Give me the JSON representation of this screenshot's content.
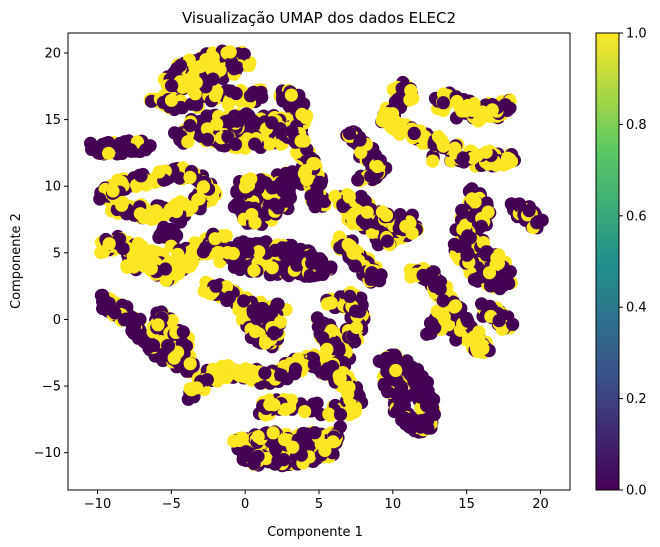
{
  "chart_data": {
    "type": "scatter",
    "title": "Visualização UMAP dos dados ELEC2",
    "xlabel": "Componente 1",
    "ylabel": "Componente 2",
    "xlim": [
      -12,
      22
    ],
    "ylim": [
      -12.8,
      21.5
    ],
    "x_ticks": [
      -10,
      -5,
      0,
      5,
      10,
      15,
      20
    ],
    "y_ticks": [
      -10,
      -5,
      0,
      5,
      10,
      15,
      20
    ],
    "grid": false,
    "colorbar": {
      "colormap": "viridis",
      "range": [
        0,
        1
      ],
      "ticks": [
        "0.0",
        "0.2",
        "0.4",
        "0.6",
        "0.8",
        "1.0"
      ],
      "colors": [
        "#440154",
        "#3b528b",
        "#21918c",
        "#5ec962",
        "#fde725"
      ]
    },
    "point_colors": {
      "class_0": "#440154",
      "class_1": "#fde725"
    },
    "clusters": [
      {
        "points": [
          [
            -4.8,
            18.6
          ],
          [
            -3.5,
            19.2
          ],
          [
            -2.0,
            19.6
          ],
          [
            -0.8,
            19.8
          ],
          [
            0.1,
            19.4
          ],
          [
            -1.8,
            18.5
          ],
          [
            -3.5,
            17.9
          ],
          [
            -5.2,
            17.8
          ],
          [
            -3.2,
            17.2
          ],
          [
            -1.0,
            16.8
          ],
          [
            1.0,
            16.8
          ],
          [
            -4.0,
            16.2
          ],
          [
            -6.0,
            16.4
          ],
          [
            -4.5,
            15.9
          ]
        ],
        "class1": 0.5
      },
      {
        "points": [
          [
            -10.2,
            12.9
          ],
          [
            -8.8,
            12.8
          ],
          [
            -7.5,
            13.0
          ],
          [
            -6.8,
            13.1
          ]
        ],
        "class1": 0.15
      },
      {
        "points": [
          [
            -4.5,
            13.6
          ],
          [
            -3.2,
            14.6
          ],
          [
            -1.5,
            15.1
          ],
          [
            0.0,
            15.0
          ],
          [
            1.8,
            14.9
          ],
          [
            3.2,
            14.3
          ],
          [
            2.2,
            13.5
          ],
          [
            0.2,
            13.2
          ],
          [
            -1.8,
            13.4
          ],
          [
            -2.8,
            13.9
          ],
          [
            -1.2,
            14.0
          ],
          [
            1.0,
            14.0
          ]
        ],
        "class1": 0.3
      },
      {
        "points": [
          [
            -9.6,
            8.9
          ],
          [
            -8.8,
            9.8
          ],
          [
            -7.8,
            10.3
          ],
          [
            -6.5,
            10.6
          ],
          [
            -5.0,
            10.9
          ],
          [
            -3.8,
            11.0
          ],
          [
            -2.7,
            10.3
          ],
          [
            -2.3,
            9.4
          ],
          [
            -3.5,
            8.7
          ],
          [
            -5.0,
            8.3
          ],
          [
            -6.5,
            8.0
          ],
          [
            -7.8,
            8.3
          ],
          [
            -8.7,
            8.5
          ],
          [
            -4.5,
            7.6
          ]
        ],
        "class1": 0.5
      },
      {
        "points": [
          [
            -5.5,
            6.5
          ],
          [
            -5.0,
            6.3
          ]
        ],
        "class1": 0.0
      },
      {
        "points": [
          [
            -9.5,
            5.4
          ],
          [
            -8.5,
            5.8
          ],
          [
            -7.4,
            5.3
          ],
          [
            -6.4,
            4.6
          ],
          [
            -5.5,
            4.0
          ],
          [
            -4.4,
            3.7
          ],
          [
            -3.7,
            4.7
          ],
          [
            -2.6,
            5.3
          ],
          [
            -1.6,
            6.1
          ],
          [
            -8.0,
            4.4
          ],
          [
            -6.8,
            3.7
          ],
          [
            -5.2,
            3.2
          ]
        ],
        "class1": 0.7
      },
      {
        "points": [
          [
            -0.5,
            9.9
          ],
          [
            0.8,
            10.2
          ],
          [
            2.3,
            10.0
          ],
          [
            2.8,
            9.0
          ],
          [
            2.0,
            8.0
          ],
          [
            0.4,
            7.5
          ],
          [
            -0.3,
            8.5
          ],
          [
            1.2,
            9.0
          ],
          [
            2.8,
            10.7
          ],
          [
            3.5,
            10.6
          ]
        ],
        "class1": 0.25
      },
      {
        "points": [
          [
            -1.4,
            4.7
          ],
          [
            -0.2,
            5.4
          ],
          [
            1.2,
            5.4
          ],
          [
            2.6,
            5.2
          ],
          [
            3.8,
            4.8
          ],
          [
            4.8,
            4.3
          ],
          [
            5.5,
            3.8
          ],
          [
            4.0,
            3.6
          ],
          [
            1.8,
            3.8
          ],
          [
            -0.5,
            4.2
          ]
        ],
        "class1": 0.3
      },
      {
        "points": [
          [
            2.5,
            16.8
          ],
          [
            3.4,
            16.3
          ],
          [
            3.8,
            15.2
          ],
          [
            3.5,
            13.8
          ],
          [
            4.0,
            12.5
          ],
          [
            4.4,
            11.3
          ],
          [
            4.8,
            10.2
          ],
          [
            4.9,
            9.5
          ],
          [
            5.0,
            8.8
          ]
        ],
        "class1": 0.4
      },
      {
        "points": [
          [
            7.0,
            14.2
          ],
          [
            7.8,
            13.2
          ],
          [
            8.5,
            12.0
          ],
          [
            9.2,
            11.0
          ],
          [
            8.0,
            10.8
          ]
        ],
        "class1": 0.35
      },
      {
        "points": [
          [
            10.4,
            17.5
          ],
          [
            11.2,
            16.8
          ],
          [
            10.0,
            16.2
          ],
          [
            9.5,
            15.2
          ],
          [
            10.5,
            14.5
          ],
          [
            11.5,
            14.0
          ],
          [
            12.8,
            13.3
          ],
          [
            14.0,
            12.7
          ],
          [
            15.5,
            12.0
          ],
          [
            16.8,
            11.8
          ],
          [
            18.2,
            12.2
          ],
          [
            13.0,
            12.2
          ]
        ],
        "class1": 0.55
      },
      {
        "points": [
          [
            13.0,
            16.0
          ],
          [
            14.0,
            16.6
          ],
          [
            15.2,
            15.8
          ],
          [
            16.2,
            15.0
          ],
          [
            17.2,
            15.6
          ],
          [
            17.8,
            16.2
          ],
          [
            14.5,
            15.4
          ]
        ],
        "class1": 0.6
      },
      {
        "points": [
          [
            6.5,
            9.0
          ],
          [
            7.5,
            8.8
          ],
          [
            8.5,
            8.2
          ],
          [
            9.5,
            7.4
          ],
          [
            10.5,
            6.8
          ],
          [
            11.4,
            6.9
          ],
          [
            10.2,
            6.2
          ],
          [
            9.2,
            6.0
          ],
          [
            8.0,
            7.5
          ],
          [
            7.2,
            7.9
          ],
          [
            11.0,
            7.4
          ]
        ],
        "class1": 0.5
      },
      {
        "points": [
          [
            15.5,
            9.4
          ],
          [
            16.2,
            8.4
          ],
          [
            15.8,
            7.0
          ],
          [
            15.0,
            6.0
          ],
          [
            16.4,
            5.0
          ],
          [
            17.2,
            4.0
          ],
          [
            17.6,
            3.2
          ],
          [
            16.8,
            2.6
          ],
          [
            15.8,
            3.4
          ],
          [
            15.0,
            4.6
          ],
          [
            14.5,
            5.6
          ],
          [
            15.2,
            8.4
          ]
        ],
        "class1": 0.35
      },
      {
        "points": [
          [
            18.4,
            8.4
          ],
          [
            19.2,
            7.9
          ],
          [
            19.8,
            7.0
          ]
        ],
        "class1": 0.1
      },
      {
        "points": [
          [
            6.5,
            5.8
          ],
          [
            7.4,
            5.1
          ],
          [
            7.8,
            4.3
          ],
          [
            8.3,
            3.6
          ],
          [
            8.9,
            3.1
          ],
          [
            7.0,
            5.6
          ]
        ],
        "class1": 0.5
      },
      {
        "points": [
          [
            11.5,
            3.5
          ],
          [
            12.6,
            3.4
          ],
          [
            13.0,
            2.6
          ],
          [
            13.6,
            1.7
          ],
          [
            14.3,
            0.6
          ],
          [
            15.0,
            -0.5
          ],
          [
            15.8,
            -1.7
          ],
          [
            16.2,
            -2.5
          ],
          [
            13.2,
            0.2
          ],
          [
            12.5,
            -1.0
          ]
        ],
        "class1": 0.55
      },
      {
        "points": [
          [
            16.2,
            0.8
          ],
          [
            17.2,
            0.3
          ],
          [
            17.8,
            -0.5
          ]
        ],
        "class1": 0.2
      },
      {
        "points": [
          [
            -9.5,
            1.4
          ],
          [
            -8.6,
            0.6
          ],
          [
            -7.8,
            0.0
          ],
          [
            -7.0,
            -1.2
          ],
          [
            -6.2,
            -2.0
          ],
          [
            -5.4,
            -2.5
          ],
          [
            -4.6,
            -3.2
          ],
          [
            -3.8,
            -3.6
          ],
          [
            -4.2,
            -1.5
          ],
          [
            -5.3,
            -0.5
          ],
          [
            -6.2,
            0.4
          ],
          [
            -5.0,
            -2.8
          ]
        ],
        "class1": 0.3
      },
      {
        "points": [
          [
            -2.5,
            2.4
          ],
          [
            -1.5,
            2.1
          ],
          [
            -0.5,
            1.5
          ],
          [
            0.5,
            1.0
          ],
          [
            1.5,
            0.4
          ],
          [
            2.2,
            -0.8
          ],
          [
            1.6,
            -1.8
          ],
          [
            0.8,
            -0.9
          ],
          [
            0.0,
            0.4
          ],
          [
            2.4,
            0.8
          ]
        ],
        "class1": 0.5
      },
      {
        "points": [
          [
            5.8,
            1.1
          ],
          [
            6.8,
            1.6
          ],
          [
            7.5,
            1.1
          ],
          [
            7.6,
            0.0
          ],
          [
            7.3,
            -1.0
          ],
          [
            6.5,
            -1.8
          ],
          [
            6.0,
            -2.8
          ],
          [
            5.6,
            -1.5
          ],
          [
            5.2,
            -0.3
          ],
          [
            6.7,
            -3.3
          ]
        ],
        "class1": 0.45
      },
      {
        "points": [
          [
            9.5,
            -2.8
          ],
          [
            10.5,
            -3.2
          ],
          [
            11.4,
            -4.0
          ],
          [
            12.0,
            -5.2
          ],
          [
            12.4,
            -6.4
          ],
          [
            12.3,
            -7.7
          ],
          [
            11.7,
            -8.2
          ],
          [
            10.9,
            -7.4
          ],
          [
            10.3,
            -6.0
          ],
          [
            9.8,
            -4.9
          ],
          [
            9.8,
            -3.6
          ],
          [
            12.7,
            -7.2
          ]
        ],
        "class1": 0.15
      },
      {
        "points": [
          [
            -3.5,
            -5.6
          ],
          [
            -2.6,
            -4.5
          ],
          [
            -1.8,
            -3.8
          ],
          [
            -0.5,
            -4.0
          ],
          [
            0.5,
            -4.2
          ],
          [
            1.5,
            -4.4
          ],
          [
            2.5,
            -4.0
          ],
          [
            3.5,
            -3.5
          ],
          [
            4.5,
            -3.0
          ],
          [
            5.5,
            -3.6
          ],
          [
            6.5,
            -4.4
          ],
          [
            7.2,
            -5.2
          ],
          [
            7.5,
            -6.2
          ],
          [
            6.8,
            -6.9
          ],
          [
            3.0,
            -6.5
          ],
          [
            1.8,
            -6.2
          ],
          [
            1.3,
            -6.9
          ]
        ],
        "class1": 0.5
      },
      {
        "points": [
          [
            -0.5,
            -9.5
          ],
          [
            0.5,
            -9.0
          ],
          [
            1.5,
            -8.8
          ],
          [
            2.5,
            -9.0
          ],
          [
            3.5,
            -9.2
          ],
          [
            4.5,
            -8.9
          ],
          [
            5.5,
            -9.0
          ],
          [
            6.0,
            -8.5
          ],
          [
            5.8,
            -9.8
          ],
          [
            4.8,
            -10.3
          ],
          [
            3.5,
            -10.5
          ],
          [
            2.2,
            -10.6
          ],
          [
            1.0,
            -10.6
          ],
          [
            0.0,
            -10.4
          ],
          [
            2.0,
            -9.5
          ]
        ],
        "class1": 0.45
      }
    ]
  }
}
